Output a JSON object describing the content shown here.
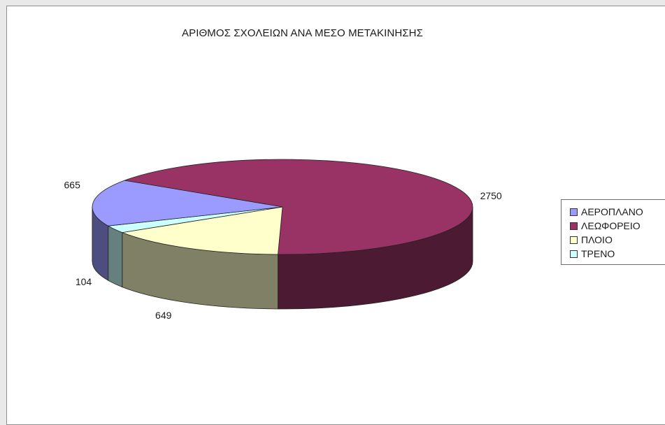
{
  "chart_data": {
    "type": "pie",
    "title": "ΑΡΙΘΜΟΣ ΣΧΟΛΕΙΩΝ ΑΝΑ ΜΕΣΟ ΜΕΤΑΚΙΝΗΣΗΣ",
    "categories": [
      "ΑΕΡΟΠΛΑΝΟ",
      "ΛΕΩΦΟΡΕΙΟ",
      "ΠΛΟΙΟ",
      "ΤΡΕΝΟ"
    ],
    "values": [
      665,
      2750,
      649,
      104
    ],
    "data_labels": [
      "665",
      "2750",
      "649",
      "104"
    ],
    "colors": [
      "#9a9aff",
      "#993366",
      "#ffffcc",
      "#ccffff"
    ],
    "style": "3d",
    "legend_position": "right"
  }
}
